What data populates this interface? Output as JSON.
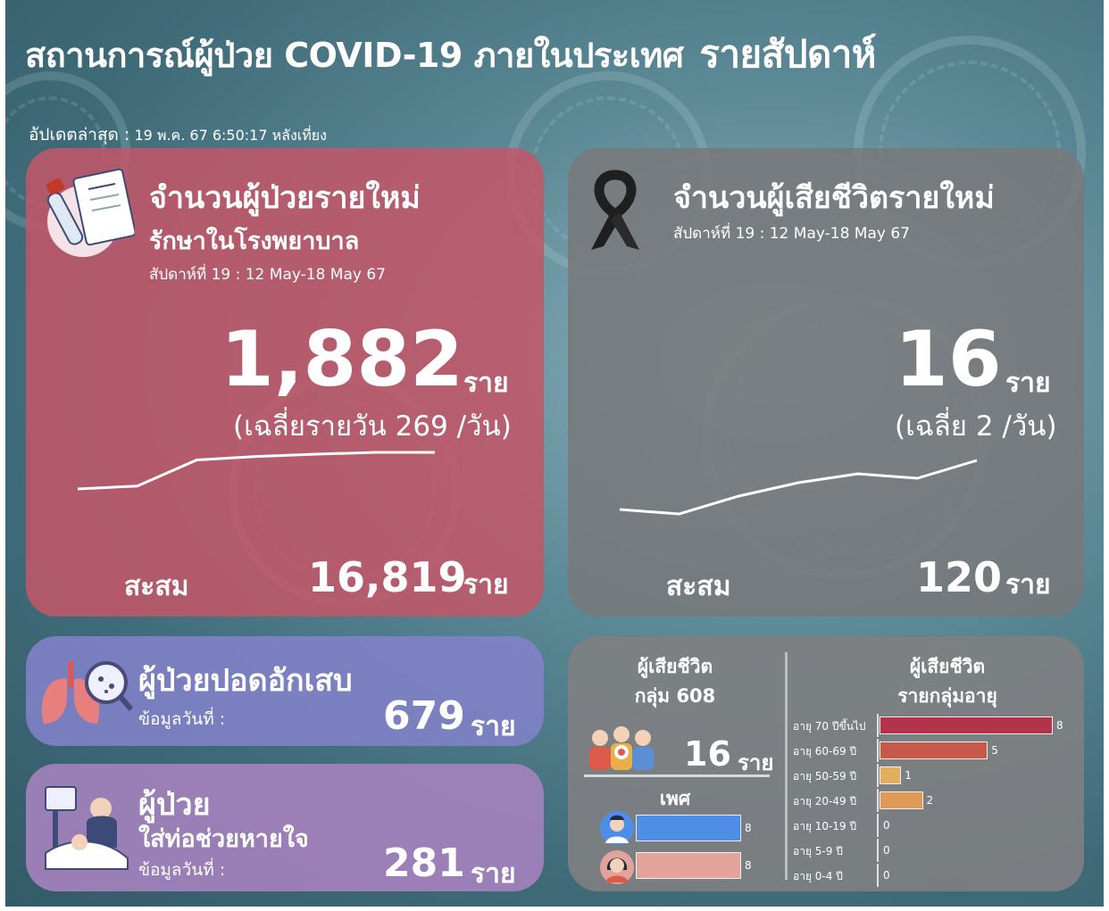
{
  "header": {
    "title": "สถานการณ์ผู้ป่วย COVID-19 ภายในประเทศ",
    "subtitle": "รายสัปดาห์",
    "update_label": "อัปเดตล่าสุด :",
    "update_value": "19 พ.ค. 67 6:50:17 หลังเที่ยง"
  },
  "cases": {
    "title": "จำนวนผู้ป่วยรายใหม่",
    "subtitle": "รักษาในโรงพยาบาล",
    "week": "สัปดาห์ที่ 19 : 12 May-18 May 67",
    "value": "1,882",
    "unit": "ราย",
    "average": "(เฉลี่ยรายวัน 269 /วัน)",
    "cumulative_label": "สะสม",
    "cumulative_value": "16,819",
    "cumulative_unit": "ราย"
  },
  "deaths": {
    "title": "จำนวนผู้เสียชีวิตรายใหม่",
    "week": "สัปดาห์ที่ 19 : 12 May-18 May 67",
    "value": "16",
    "unit": "ราย",
    "average": "(เฉลี่ย 2 /วัน)",
    "cumulative_label": "สะสม",
    "cumulative_value": "120",
    "cumulative_unit": "ราย"
  },
  "pneumonia": {
    "title": "ผู้ป่วยปอดอักเสบ",
    "date_label": "ข้อมูลวันที่ :",
    "value": "679",
    "unit": "ราย"
  },
  "ventilator": {
    "title": "ผู้ป่วย",
    "subtitle": "ใส่ท่อช่วยหายใจ",
    "date_label": "ข้อมูลวันที่ :",
    "value": "281",
    "unit": "ราย"
  },
  "breakdown": {
    "group608_title_1": "ผู้เสียชีวิต",
    "group608_title_2": "กลุ่ม 608",
    "group608_value": "16",
    "group608_unit": "ราย",
    "sex_title": "เพศ",
    "age_title_1": "ผู้เสียชีวิต",
    "age_title_2": "รายกลุ่มอายุ"
  },
  "colors": {
    "cases_card": "#c45669",
    "deaths_card": "#78787a",
    "pneumonia_card": "#8282c8",
    "ventilator_card": "#a582be",
    "male_bar": "#4f8ee6",
    "female_bar": "#e2a49a"
  },
  "chart_data": [
    {
      "type": "line",
      "series": [
        {
          "values": [
            1200,
            1250,
            1700,
            1760,
            1800,
            1830,
            1830
          ]
        }
      ],
      "ylim": [
        0,
        2000
      ]
    },
    {
      "type": "line",
      "series": [
        {
          "values": [
            7,
            6,
            10,
            13,
            15,
            14,
            18
          ]
        }
      ],
      "ylim": [
        0,
        20
      ]
    },
    {
      "type": "bar",
      "orientation": "horizontal",
      "categories": [
        "อายุ 70 ปีขึ้นไป",
        "อายุ 60-69 ปี",
        "อายุ 50-59 ปี",
        "อายุ 20-49 ปี",
        "อายุ 10-19 ปี",
        "อายุ 5-9 ปี",
        "อายุ 0-4 ปี"
      ],
      "values": [
        8,
        5,
        1,
        2,
        0,
        0,
        0
      ],
      "colors": [
        "#b3344a",
        "#c7594a",
        "#e0ae5c",
        "#e09a58",
        "#cccccc",
        "#cccccc",
        "#cccccc"
      ],
      "xlim": [
        0,
        8
      ]
    },
    {
      "type": "bar",
      "orientation": "horizontal",
      "categories": [
        "male",
        "female"
      ],
      "values": [
        8,
        8
      ],
      "xlim": [
        0,
        8
      ]
    }
  ]
}
